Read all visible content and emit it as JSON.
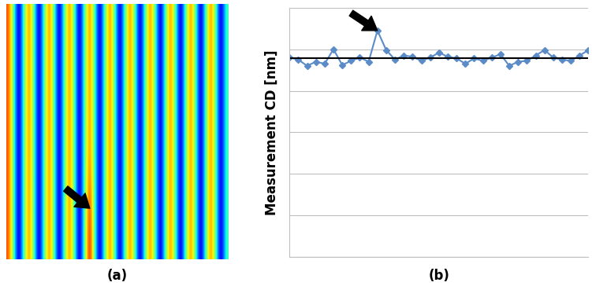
{
  "chart_data": [
    {
      "type": "heatmap",
      "caption": "(a)",
      "tick_labels": false,
      "cells": [
        [
          0.85,
          0.5,
          0.1,
          0.5,
          0.85,
          0.5,
          0.1,
          0.5,
          0.85,
          0.5,
          0.1,
          0.5,
          0.85,
          0.5,
          0.1,
          0.5,
          0.85,
          0.5,
          0.1,
          0.5,
          0.85,
          0.5,
          0.1,
          0.5,
          0.85,
          0.5,
          0.1,
          0.5,
          0.85,
          0.5,
          0.1,
          0.5,
          0.85,
          0.5,
          0.1,
          0.5,
          0.85,
          0.5,
          0.1,
          0.5,
          0.85,
          0.5,
          0.1,
          0.5
        ],
        [
          0.85,
          0.5,
          0.1,
          0.5,
          0.85,
          0.5,
          0.1,
          0.5,
          0.85,
          0.5,
          0.1,
          0.5,
          0.85,
          0.5,
          0.1,
          0.5,
          0.85,
          0.5,
          0.1,
          0.5,
          0.85,
          0.5,
          0.1,
          0.5,
          0.85,
          0.5,
          0.1,
          0.5,
          0.85,
          0.5,
          0.1,
          0.5,
          0.85,
          0.5,
          0.1,
          0.5,
          0.85,
          0.5,
          0.1,
          0.5,
          0.85,
          0.5,
          0.1,
          0.5
        ],
        [
          0.85,
          0.5,
          0.1,
          0.5,
          0.85,
          0.5,
          0.1,
          0.5,
          0.85,
          0.5,
          0.1,
          0.5,
          0.85,
          0.5,
          0.1,
          0.5,
          0.85,
          0.5,
          0.1,
          0.5,
          0.85,
          0.5,
          0.1,
          0.5,
          0.85,
          0.5,
          0.1,
          0.5,
          0.85,
          0.5,
          0.1,
          0.5,
          0.85,
          0.5,
          0.1,
          0.5,
          0.85,
          0.5,
          0.1,
          0.5,
          0.85,
          0.5,
          0.1,
          0.5
        ],
        [
          0.85,
          0.5,
          0.1,
          0.5,
          0.85,
          0.5,
          0.1,
          0.5,
          0.85,
          0.5,
          0.1,
          0.5,
          0.85,
          0.5,
          0.1,
          0.5,
          1.0,
          0.5,
          0.1,
          0.5,
          0.85,
          0.5,
          0.1,
          0.5,
          0.85,
          0.5,
          0.1,
          0.5,
          0.85,
          0.5,
          0.1,
          0.5,
          0.85,
          0.5,
          0.1,
          0.5,
          0.85,
          0.5,
          0.1,
          0.5,
          0.85,
          0.5,
          0.1,
          0.5
        ]
      ]
    },
    {
      "type": "line",
      "caption": "(b)",
      "y_label": "Measurement CD [nm]",
      "tick_labels": false,
      "grid": true,
      "color": "#5b8cc8",
      "marker": "diamond",
      "x": [
        1,
        2,
        3,
        4,
        5,
        6,
        7,
        8,
        9,
        10,
        11,
        12,
        13,
        14,
        15,
        16,
        17,
        18,
        19,
        20,
        21,
        22,
        23,
        24,
        25,
        26,
        27,
        28,
        29,
        30,
        31,
        32,
        33,
        34,
        35
      ],
      "values": [
        4.8,
        4.75,
        4.6,
        4.7,
        4.65,
        5.0,
        4.62,
        4.72,
        4.8,
        4.7,
        5.45,
        4.98,
        4.75,
        4.85,
        4.82,
        4.72,
        4.8,
        4.92,
        4.82,
        4.78,
        4.65,
        4.78,
        4.72,
        4.8,
        4.88,
        4.6,
        4.7,
        4.72,
        4.85,
        4.98,
        4.8,
        4.75,
        4.72,
        4.85,
        4.98
      ],
      "mean_line": 4.78,
      "xlim": [
        1,
        35
      ],
      "xticks": [],
      "ylim": [
        0,
        6
      ],
      "yticks": [
        0,
        1,
        2,
        3,
        4,
        5,
        6
      ]
    }
  ]
}
